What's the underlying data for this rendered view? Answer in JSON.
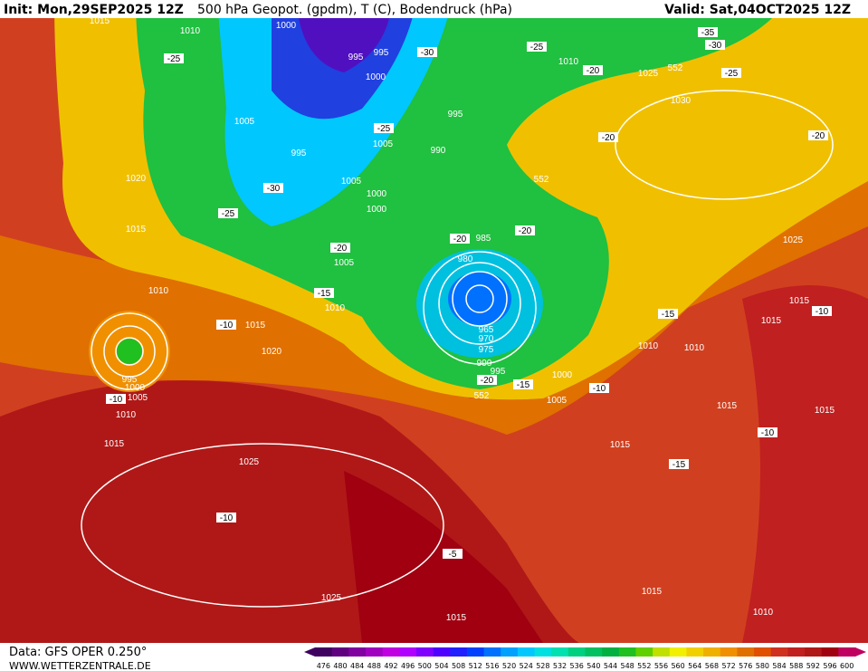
{
  "header": {
    "init": "Init: Mon,29SEP2025 12Z",
    "title": "500 hPa Geopot. (gpdm), T (C), Bodendruck (hPa)",
    "valid": "Valid: Sat,04OCT2025 12Z"
  },
  "map": {
    "labels": [
      "1015",
      "1010",
      "1000",
      "995",
      "995",
      "-30",
      "1000",
      "-25",
      "-25",
      "1010",
      "-20",
      "1025",
      "552",
      "-25",
      "-35",
      "-30",
      "1030",
      "-20",
      "1005",
      "-25",
      "995",
      "1005",
      "995",
      "990",
      "-20",
      "1020",
      "-30",
      "1005",
      "1000",
      "552",
      "1000",
      "-25",
      "1015",
      "-20",
      "-20",
      "985",
      "1025",
      "-20",
      "1005",
      "980",
      "1010",
      "-15",
      "1015",
      "1010",
      "-15",
      "-10",
      "-10",
      "1015",
      "1015",
      "1010",
      "1010",
      "1020",
      "965",
      "970",
      "975",
      "990",
      "995",
      "1000",
      "-20",
      "-15",
      "995",
      "1000",
      "1005",
      "-10",
      "552",
      "1005",
      "-10",
      "1015",
      "1015",
      "1010",
      "-10",
      "1015",
      "1015",
      "1025",
      "-15",
      "-10",
      "-5",
      "1015",
      "1025",
      "1010",
      "1015"
    ]
  },
  "footer": {
    "data": "Data: GFS OPER 0.250°",
    "site": "WWW.WETTERZENTRALE.DE"
  },
  "colorbar": {
    "labels": [
      476,
      480,
      484,
      488,
      492,
      496,
      500,
      504,
      508,
      512,
      516,
      520,
      524,
      528,
      532,
      536,
      540,
      544,
      548,
      552,
      556,
      560,
      564,
      568,
      572,
      576,
      580,
      584,
      588,
      592,
      596,
      600
    ],
    "colors": [
      "#400060",
      "#600080",
      "#8000a0",
      "#a000c0",
      "#c000e0",
      "#b000ff",
      "#8000ff",
      "#5000ff",
      "#2020ff",
      "#0040ff",
      "#0070ff",
      "#00a0ff",
      "#00c8ff",
      "#00e0e0",
      "#00e0b0",
      "#00d080",
      "#00c060",
      "#00b040",
      "#20c020",
      "#60d000",
      "#c0e000",
      "#f0f000",
      "#f0d000",
      "#f0b000",
      "#f09000",
      "#e07000",
      "#e05000",
      "#d03020",
      "#c02020",
      "#b01818",
      "#a00010",
      "#c00060"
    ]
  }
}
